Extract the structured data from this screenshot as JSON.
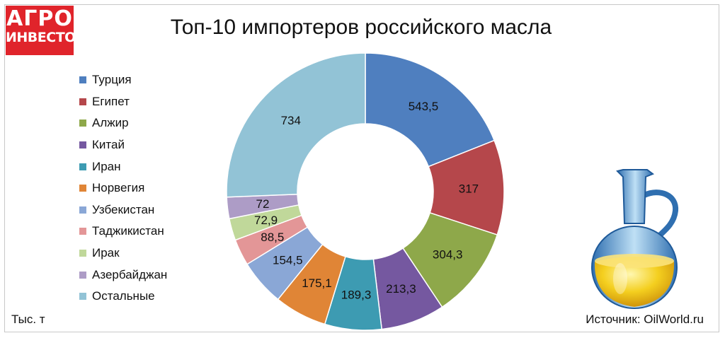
{
  "brand": {
    "line1": "АГРО",
    "line2": "ИНВЕСТОР"
  },
  "footer": {
    "unit": "Тыс. т",
    "source": "Источник: OilWorld.ru"
  },
  "colors": {
    "Турция": "#4f7fbf",
    "Египет": "#b5474b",
    "Алжир": "#8ea84a",
    "Китай": "#7558a0",
    "Иран": "#3d9bb2",
    "Норвегия": "#e08536",
    "Узбекистан": "#8aa7d6",
    "Таджикистан": "#e39697",
    "Ирак": "#c0d89a",
    "Азербайджан": "#ad9cc6",
    "Остальные": "#92c3d6"
  },
  "chart_data": {
    "type": "pie",
    "title": "Топ-10 импортеров российского масла",
    "unit": "Тыс. т",
    "legend_position": "left",
    "categories": [
      "Турция",
      "Египет",
      "Алжир",
      "Китай",
      "Иран",
      "Норвегия",
      "Узбекистан",
      "Таджикистан",
      "Ирак",
      "Азербайджан",
      "Остальные"
    ],
    "values": [
      543.5,
      317,
      304.3,
      213.3,
      189.3,
      175.1,
      154.5,
      88.5,
      72.9,
      72,
      734
    ],
    "labels": [
      "543,5",
      "317",
      "304,3",
      "213,3",
      "189,3",
      "175,1",
      "154,5",
      "88,5",
      "72,9",
      "72",
      "734"
    ]
  }
}
